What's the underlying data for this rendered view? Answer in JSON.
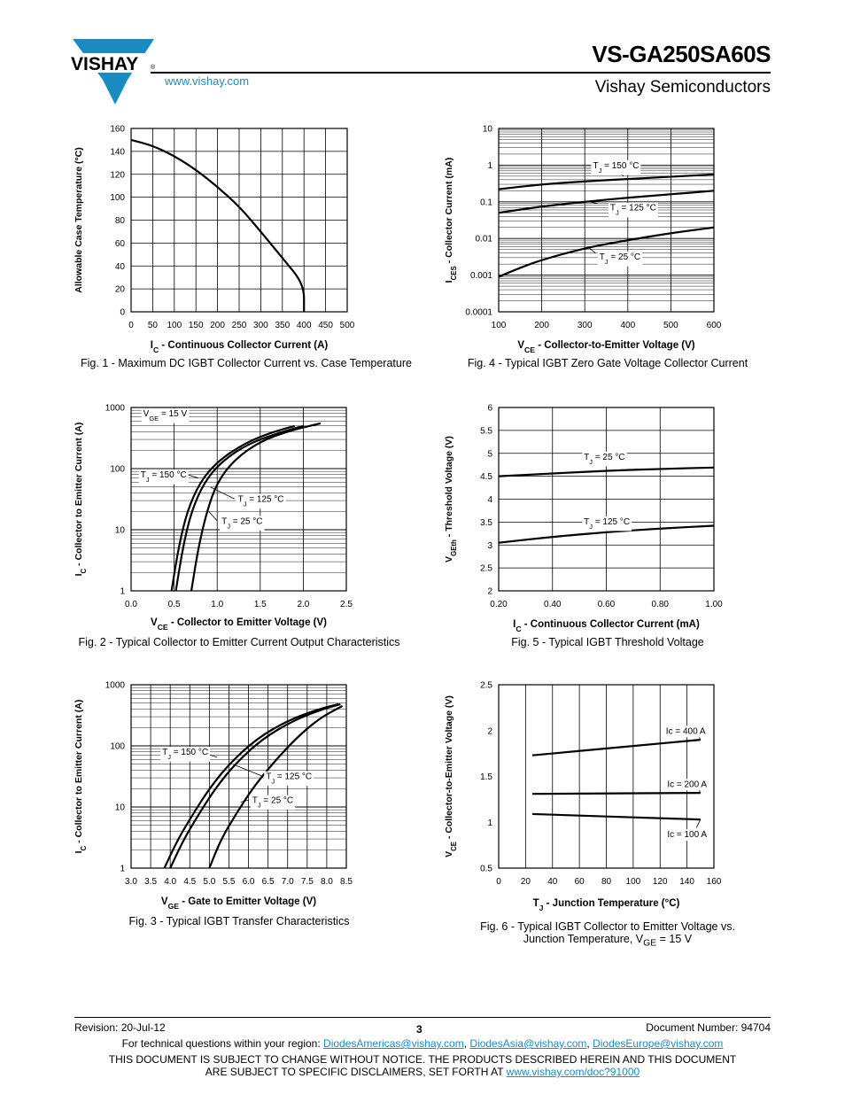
{
  "header": {
    "logo_text": "VISHAY",
    "part_number": "VS-GA250SA60S",
    "subtitle": "Vishay Semiconductors",
    "website": "www.vishay.com"
  },
  "footer": {
    "revision": "Revision: 20-Jul-12",
    "page": "3",
    "document_number": "Document Number: 94704",
    "contact_prefix": "For technical questions within your region: ",
    "emails": [
      "DiodesAmericas@vishay.com",
      "DiodesAsia@vishay.com",
      "DiodesEurope@vishay.com"
    ],
    "sep": ", ",
    "disclaimer_1": "THIS DOCUMENT IS SUBJECT TO CHANGE WITHOUT NOTICE. THE PRODUCTS DESCRIBED HEREIN AND THIS DOCUMENT",
    "disclaimer_2_prefix": "ARE SUBJECT TO SPECIFIC DISCLAIMERS, SET FORTH AT ",
    "disclaimer_link": "www.vishay.com/doc?91000"
  },
  "chart_data": [
    {
      "id": "fig1",
      "type": "line",
      "caption": "Fig. 1 - Maximum DC IGBT Collector Current vs. Case Temperature",
      "xlabel": "I<sub>C</sub> - Continuous Collector Current (A)",
      "ylabel": "Allowable Case Temperature (°C)",
      "xlim": [
        0,
        500
      ],
      "ylim": [
        0,
        160
      ],
      "xticks": [
        "0",
        "50",
        "100",
        "150",
        "200",
        "250",
        "300",
        "350",
        "400",
        "450",
        "500"
      ],
      "yticks": [
        "0",
        "20",
        "40",
        "60",
        "80",
        "100",
        "120",
        "140",
        "160"
      ],
      "grid": true,
      "series": [
        {
          "x": [
            0,
            50,
            100,
            150,
            200,
            250,
            300,
            350,
            400,
            400
          ],
          "y": [
            150,
            145,
            136,
            124,
            109,
            92,
            70,
            47,
            24,
            0
          ]
        }
      ],
      "annotations": []
    },
    {
      "id": "fig4",
      "type": "line",
      "caption": "Fig. 4 - Typical IGBT Zero Gate Voltage Collector Current",
      "xlabel": "V<sub>CE</sub> - Collector-to-Emitter Voltage (V)",
      "ylabel": "I<sub>CES</sub> - Collector Current (mA)",
      "xlim": [
        100,
        600
      ],
      "ylim": [
        0.0001,
        10
      ],
      "yscale": "log",
      "xticks": [
        "100",
        "200",
        "300",
        "400",
        "500",
        "600"
      ],
      "yticks": [
        "0.0001",
        "0.001",
        "0.01",
        "0.1",
        "1",
        "10"
      ],
      "grid": true,
      "series": [
        {
          "name": "T<sub>J</sub> = 150 °C",
          "x": [
            100,
            200,
            300,
            400,
            500,
            600
          ],
          "y": [
            0.22,
            0.3,
            0.36,
            0.42,
            0.48,
            0.56
          ]
        },
        {
          "name": "T<sub>J</sub> = 125 °C",
          "x": [
            100,
            200,
            300,
            400,
            500,
            600
          ],
          "y": [
            0.05,
            0.075,
            0.1,
            0.13,
            0.16,
            0.2
          ]
        },
        {
          "name": "T<sub>J</sub> = 25 °C",
          "x": [
            100,
            150,
            200,
            300,
            400,
            500,
            600
          ],
          "y": [
            0.0009,
            0.0016,
            0.0026,
            0.0055,
            0.009,
            0.014,
            0.02
          ]
        }
      ],
      "annotations": [
        {
          "text": "T<sub>J</sub> = 150 °C",
          "x": 315,
          "y": 1.0,
          "lx": [
            370,
            390
          ],
          "ly": [
            0.8,
            0.5
          ]
        },
        {
          "text": "T<sub>J</sub> = 125 °C",
          "x": 355,
          "y": 0.07,
          "lx": [
            310,
            330
          ],
          "ly": [
            0.1,
            0.09
          ]
        },
        {
          "text": "T<sub>J</sub> = 25 °C",
          "x": 330,
          "y": 0.0032,
          "lx": [
            310,
            325
          ],
          "ly": [
            0.0055,
            0.004
          ]
        }
      ]
    },
    {
      "id": "fig2",
      "type": "line",
      "caption": "Fig. 2 - Typical Collector to Emitter Current Output Characteristics",
      "xlabel": "V<sub>CE</sub> - Collector to Emitter Voltage (V)",
      "ylabel": "I<sub>C</sub> - Collector to Emitter Current (A)",
      "xlim": [
        0,
        2.5
      ],
      "ylim": [
        1,
        1000
      ],
      "yscale": "log",
      "xticks": [
        "0.0",
        "0.5",
        "1.0",
        "1.5",
        "2.0",
        "2.5"
      ],
      "yticks": [
        "1",
        "10",
        "100",
        "1000"
      ],
      "grid": true,
      "series": [
        {
          "name": "T<sub>J</sub> = 150 °C",
          "x": [
            0.47,
            0.55,
            0.65,
            0.8,
            1.0,
            1.3,
            1.6,
            1.9
          ],
          "y": [
            1,
            5,
            20,
            60,
            130,
            250,
            380,
            500
          ]
        },
        {
          "name": "T<sub>J</sub> = 125 °C",
          "x": [
            0.52,
            0.6,
            0.7,
            0.85,
            1.05,
            1.35,
            1.7,
            2.0
          ],
          "y": [
            1,
            5,
            20,
            60,
            130,
            250,
            380,
            500
          ]
        },
        {
          "name": "T<sub>J</sub> = 25 °C",
          "x": [
            0.7,
            0.78,
            0.88,
            1.0,
            1.2,
            1.5,
            1.85,
            2.2
          ],
          "y": [
            1,
            5,
            20,
            60,
            140,
            280,
            420,
            550
          ]
        }
      ],
      "annotations": [
        {
          "text": "V<sub>GE</sub> = 15 V",
          "x": 0.12,
          "y": 800
        },
        {
          "text": "T<sub>J</sub> = 150 °C",
          "x": 0.09,
          "y": 80,
          "lx": [
            0.65,
            0.78
          ],
          "ly": [
            80,
            70
          ]
        },
        {
          "text": "T<sub>J</sub> = 125 °C",
          "x": 1.22,
          "y": 32,
          "lx": [
            1.2,
            0.92
          ],
          "ly": [
            32,
            50
          ]
        },
        {
          "text": "T<sub>J</sub> = 25 °C",
          "x": 1.03,
          "y": 14,
          "lx": [
            1.0,
            0.9
          ],
          "ly": [
            14,
            20
          ]
        }
      ]
    },
    {
      "id": "fig5",
      "type": "line",
      "caption": "Fig. 5 - Typical IGBT Threshold Voltage",
      "xlabel": "I<sub>C</sub> - Continuous Collector Current (mA)",
      "ylabel": "V<sub>GEth</sub> - Threshold Voltage (V)",
      "xlim": [
        0.2,
        1.0
      ],
      "ylim": [
        2,
        6
      ],
      "xticks": [
        "0.20",
        "0.40",
        "0.60",
        "0.80",
        "1.00"
      ],
      "yticks": [
        "2",
        "2.5",
        "3",
        "3.5",
        "4",
        "4.5",
        "5",
        "5.5",
        "6"
      ],
      "grid": true,
      "series": [
        {
          "name": "T<sub>J</sub> = 25 °C",
          "x": [
            0.2,
            0.4,
            0.6,
            0.8,
            1.0
          ],
          "y": [
            4.5,
            4.56,
            4.62,
            4.66,
            4.69
          ]
        },
        {
          "name": "T<sub>J</sub> = 125 °C",
          "x": [
            0.2,
            0.4,
            0.6,
            0.8,
            1.0
          ],
          "y": [
            3.05,
            3.18,
            3.28,
            3.36,
            3.42
          ]
        }
      ],
      "annotations": [
        {
          "text": "T<sub>J</sub> = 25 °C",
          "x": 0.51,
          "y": 4.93
        },
        {
          "text": "T<sub>J</sub> = 125 °C",
          "x": 0.51,
          "y": 3.52
        }
      ]
    },
    {
      "id": "fig3",
      "type": "line",
      "caption": "Fig. 3 - Typical IGBT Transfer Characteristics",
      "xlabel": "V<sub>GE</sub> - Gate to Emitter Voltage (V)",
      "ylabel": "I<sub>C</sub> - Collector to Emitter Current (A)",
      "xlim": [
        3.0,
        8.5
      ],
      "ylim": [
        1,
        1000
      ],
      "yscale": "log",
      "xticks": [
        "3.0",
        "3.5",
        "4.0",
        "4.5",
        "5.0",
        "5.5",
        "6.0",
        "6.5",
        "7.0",
        "7.5",
        "8.0",
        "8.5"
      ],
      "yticks": [
        "1",
        "10",
        "100",
        "1000"
      ],
      "grid": true,
      "series": [
        {
          "name": "T<sub>J</sub> = 150 °C",
          "x": [
            3.85,
            4.2,
            4.6,
            5.0,
            5.5,
            6.2,
            7.0,
            7.8,
            8.3
          ],
          "y": [
            1,
            3,
            8,
            20,
            50,
            130,
            260,
            400,
            480
          ]
        },
        {
          "name": "T<sub>J</sub> = 125 °C",
          "x": [
            4.0,
            4.35,
            4.75,
            5.15,
            5.65,
            6.35,
            7.15,
            7.9,
            8.35
          ],
          "y": [
            1,
            3,
            8,
            20,
            50,
            130,
            260,
            400,
            480
          ]
        },
        {
          "name": "T<sub>J</sub> = 25 °C",
          "x": [
            5.0,
            5.3,
            5.7,
            6.1,
            6.6,
            7.2,
            7.8,
            8.4
          ],
          "y": [
            1,
            3,
            8,
            20,
            50,
            130,
            280,
            450
          ]
        }
      ],
      "annotations": [
        {
          "text": "T<sub>J</sub> = 150 °C",
          "x": 3.75,
          "y": 80,
          "lx": [
            4.9,
            5.2
          ],
          "ly": [
            75,
            65
          ]
        },
        {
          "text": "T<sub>J</sub> = 125 °C",
          "x": 6.4,
          "y": 32,
          "lx": [
            6.35,
            5.6
          ],
          "ly": [
            32,
            50
          ]
        },
        {
          "text": "T<sub>J</sub> = 25 °C",
          "x": 6.05,
          "y": 13,
          "lx": [
            6.0,
            5.8
          ],
          "ly": [
            13,
            12
          ]
        }
      ]
    },
    {
      "id": "fig6",
      "type": "line",
      "caption": "Fig. 6 - Typical IGBT Collector to Emitter Voltage vs.",
      "caption2": "Junction Temperature, V<sub>GE</sub> = 15 V",
      "xlabel": "T<sub>J</sub> - Junction Temperature (°C)",
      "ylabel": "V<sub>CE</sub> - Collector-to-Emitter Voltage (V)",
      "xlim": [
        0,
        160
      ],
      "ylim": [
        0.5,
        2.5
      ],
      "xticks": [
        "0",
        "20",
        "40",
        "60",
        "80",
        "100",
        "120",
        "140",
        "160"
      ],
      "yticks": [
        "0.5",
        "1",
        "1.5",
        "2",
        "2.5"
      ],
      "grid": "vertical",
      "series": [
        {
          "name": "Ic = 400 A",
          "x": [
            25,
            150
          ],
          "y": [
            1.73,
            1.9
          ]
        },
        {
          "name": "Ic = 200 A",
          "x": [
            25,
            150
          ],
          "y": [
            1.31,
            1.32
          ]
        },
        {
          "name": "Ic = 100 A",
          "x": [
            25,
            150
          ],
          "y": [
            1.09,
            1.03
          ]
        }
      ],
      "annotations": [
        {
          "text": "Ic = 400 A",
          "x": 123,
          "y": 2.0,
          "lx": [
            147,
            150
          ],
          "ly": [
            2.0,
            1.9
          ]
        },
        {
          "text": "Ic = 200 A",
          "x": 124,
          "y": 1.42,
          "lx": [
            147,
            150
          ],
          "ly": [
            1.42,
            1.32
          ]
        },
        {
          "text": "Ic = 100 A",
          "x": 124,
          "y": 0.87,
          "lx": [
            147,
            150
          ],
          "ly": [
            0.94,
            1.03
          ]
        }
      ]
    }
  ]
}
